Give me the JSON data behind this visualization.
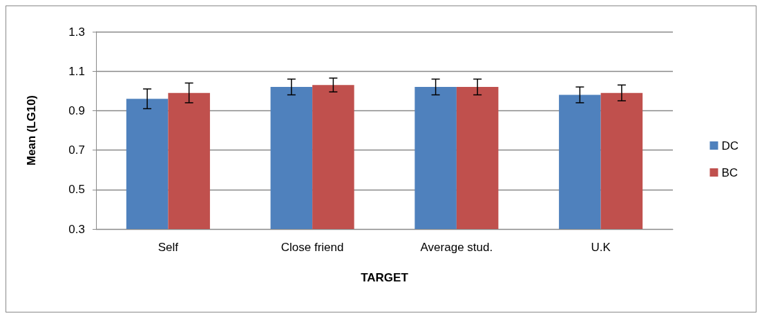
{
  "chart_data": {
    "type": "bar",
    "xlabel": "TARGET",
    "ylabel": "Mean (LG10)",
    "categories": [
      "Self",
      "Close friend",
      "Average stud.",
      "U.K"
    ],
    "series": [
      {
        "name": "DC",
        "color": "#4f81bd",
        "values": [
          0.96,
          1.02,
          1.02,
          0.98
        ],
        "errors": [
          0.05,
          0.04,
          0.04,
          0.04
        ]
      },
      {
        "name": "BC",
        "color": "#c0504d",
        "values": [
          0.99,
          1.03,
          1.02,
          0.99
        ],
        "errors": [
          0.05,
          0.035,
          0.04,
          0.04
        ]
      }
    ],
    "ylim": [
      0.3,
      1.3
    ],
    "yticks": [
      0.3,
      0.5,
      0.7,
      0.9,
      1.1,
      1.3
    ],
    "grid": "y",
    "legend": "right"
  }
}
